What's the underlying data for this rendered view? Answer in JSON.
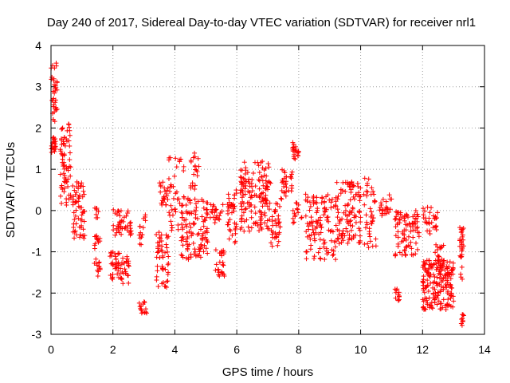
{
  "chart_data": {
    "type": "scatter",
    "title": "Day 240 of 2017, Sidereal Day-to-day VTEC variation (SDTVAR) for receiver nrl1",
    "xlabel": "GPS time / hours",
    "ylabel": "SDTVAR / TECUs",
    "xlim": [
      0,
      14
    ],
    "ylim": [
      -3,
      4
    ],
    "xticks": [
      "0",
      "2",
      "4",
      "6",
      "8",
      "10",
      "12",
      "14"
    ],
    "yticks": [
      "-3",
      "-2",
      "-1",
      "0",
      "1",
      "2",
      "3",
      "4"
    ],
    "grid": true,
    "marker": "+",
    "series_color": "#ff0000",
    "clusters": [
      {
        "x0": 0.0,
        "x1": 0.15,
        "ymin": 1.4,
        "ymax": 1.8,
        "n": 20
      },
      {
        "x0": 0.0,
        "x1": 0.2,
        "ymin": 2.1,
        "ymax": 3.6,
        "n": 35
      },
      {
        "x0": 0.3,
        "x1": 0.65,
        "ymin": 0.1,
        "ymax": 2.1,
        "n": 70
      },
      {
        "x0": 0.7,
        "x1": 1.1,
        "ymin": -0.7,
        "ymax": 0.7,
        "n": 60
      },
      {
        "x0": 1.4,
        "x1": 1.6,
        "ymin": -1.6,
        "ymax": -0.6,
        "n": 25
      },
      {
        "x0": 1.4,
        "x1": 1.6,
        "ymin": -0.2,
        "ymax": 0.15,
        "n": 8
      },
      {
        "x0": 1.9,
        "x1": 2.3,
        "ymin": -1.7,
        "ymax": -1.0,
        "n": 40
      },
      {
        "x0": 2.0,
        "x1": 2.6,
        "ymin": -0.6,
        "ymax": 0.05,
        "n": 45
      },
      {
        "x0": 2.3,
        "x1": 2.6,
        "ymin": -1.8,
        "ymax": -1.1,
        "n": 20
      },
      {
        "x0": 2.85,
        "x1": 3.1,
        "ymin": -2.5,
        "ymax": -2.2,
        "n": 15
      },
      {
        "x0": 2.85,
        "x1": 3.1,
        "ymin": -0.9,
        "ymax": -0.1,
        "n": 15
      },
      {
        "x0": 3.4,
        "x1": 3.8,
        "ymin": -1.9,
        "ymax": -0.5,
        "n": 50
      },
      {
        "x0": 3.5,
        "x1": 3.9,
        "ymin": 0.1,
        "ymax": 0.8,
        "n": 25
      },
      {
        "x0": 3.8,
        "x1": 4.3,
        "ymin": -0.6,
        "ymax": 1.3,
        "n": 40
      },
      {
        "x0": 4.2,
        "x1": 5.1,
        "ymin": -1.2,
        "ymax": 0.3,
        "n": 110
      },
      {
        "x0": 4.5,
        "x1": 4.8,
        "ymin": 0.5,
        "ymax": 1.4,
        "n": 20
      },
      {
        "x0": 5.3,
        "x1": 5.6,
        "ymin": -1.6,
        "ymax": -0.9,
        "n": 25
      },
      {
        "x0": 5.0,
        "x1": 5.6,
        "ymin": -0.3,
        "ymax": 0.2,
        "n": 25
      },
      {
        "x0": 5.7,
        "x1": 6.0,
        "ymin": -0.8,
        "ymax": 0.5,
        "n": 40
      },
      {
        "x0": 6.1,
        "x1": 7.1,
        "ymin": -0.5,
        "ymax": 1.2,
        "n": 150
      },
      {
        "x0": 7.1,
        "x1": 7.4,
        "ymin": -0.9,
        "ymax": 0.2,
        "n": 35
      },
      {
        "x0": 7.4,
        "x1": 7.8,
        "ymin": 0.2,
        "ymax": 1.0,
        "n": 30
      },
      {
        "x0": 7.8,
        "x1": 8.0,
        "ymin": 1.2,
        "ymax": 1.7,
        "n": 20
      },
      {
        "x0": 7.8,
        "x1": 8.1,
        "ymin": -0.3,
        "ymax": 0.2,
        "n": 15
      },
      {
        "x0": 8.2,
        "x1": 9.2,
        "ymin": -1.2,
        "ymax": 0.4,
        "n": 110
      },
      {
        "x0": 9.2,
        "x1": 10.0,
        "ymin": -0.8,
        "ymax": 0.7,
        "n": 110
      },
      {
        "x0": 10.1,
        "x1": 10.5,
        "ymin": -1.0,
        "ymax": 0.8,
        "n": 40
      },
      {
        "x0": 10.6,
        "x1": 11.0,
        "ymin": -0.2,
        "ymax": 0.5,
        "n": 25
      },
      {
        "x0": 11.1,
        "x1": 11.25,
        "ymin": -2.2,
        "ymax": -1.9,
        "n": 12
      },
      {
        "x0": 11.1,
        "x1": 11.9,
        "ymin": -1.1,
        "ymax": 0.0,
        "n": 90
      },
      {
        "x0": 12.0,
        "x1": 12.5,
        "ymin": -0.6,
        "ymax": 0.1,
        "n": 30
      },
      {
        "x0": 12.0,
        "x1": 13.0,
        "ymin": -2.4,
        "ymax": -1.2,
        "n": 190
      },
      {
        "x0": 12.4,
        "x1": 12.7,
        "ymin": -1.3,
        "ymax": -0.8,
        "n": 20
      },
      {
        "x0": 13.2,
        "x1": 13.35,
        "ymin": -1.7,
        "ymax": -0.4,
        "n": 30
      },
      {
        "x0": 13.25,
        "x1": 13.35,
        "ymin": -2.8,
        "ymax": -2.5,
        "n": 10
      }
    ]
  }
}
